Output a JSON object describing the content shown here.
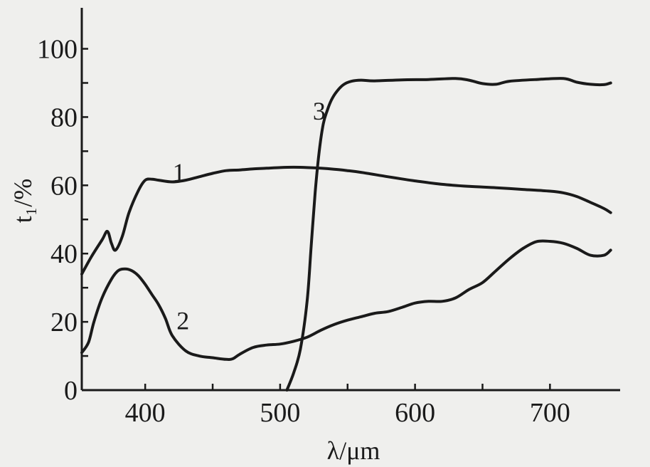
{
  "chart_data": {
    "type": "line",
    "title": "",
    "xlabel": "λ/μm",
    "ylabel": "t₁/%",
    "xlim": [
      353,
      752
    ],
    "ylim": [
      0,
      112
    ],
    "x_ticks": [
      400,
      450,
      500,
      550,
      600,
      650,
      700
    ],
    "x_tick_labels": [
      "400",
      "",
      "500",
      "",
      "600",
      "",
      "700"
    ],
    "y_ticks": [
      0,
      10,
      20,
      30,
      40,
      50,
      60,
      70,
      80,
      90,
      100
    ],
    "y_tick_labels": [
      "0",
      "",
      "20",
      "",
      "40",
      "",
      "60",
      "",
      "80",
      "",
      "100"
    ],
    "grid": false,
    "series": [
      {
        "name": "1",
        "x": [
          353,
          360,
          368,
          372,
          375,
          378,
          383,
          388,
          395,
          400,
          405,
          410,
          420,
          430,
          440,
          450,
          460,
          470,
          480,
          490,
          500,
          510,
          520,
          530,
          540,
          550,
          560,
          580,
          600,
          620,
          640,
          660,
          680,
          700,
          710,
          720,
          730,
          740,
          745
        ],
        "y": [
          34,
          39,
          44,
          46.5,
          43,
          41,
          45,
          52,
          58.5,
          61.5,
          61.8,
          61.5,
          61,
          61.5,
          62.5,
          63.5,
          64.3,
          64.5,
          64.8,
          65,
          65.2,
          65.3,
          65.2,
          65,
          64.7,
          64.3,
          63.8,
          62.5,
          61.3,
          60.3,
          59.7,
          59.3,
          58.8,
          58.3,
          57.8,
          56.7,
          55,
          53.2,
          52
        ]
      },
      {
        "name": "2",
        "x": [
          353,
          358,
          362,
          368,
          375,
          380,
          385,
          390,
          395,
          400,
          405,
          410,
          415,
          420,
          430,
          440,
          450,
          460,
          465,
          470,
          480,
          490,
          500,
          510,
          520,
          530,
          540,
          550,
          560,
          570,
          580,
          590,
          600,
          610,
          620,
          630,
          640,
          650,
          660,
          670,
          680,
          690,
          700,
          710,
          720,
          730,
          740,
          745
        ],
        "y": [
          11,
          14,
          20,
          27,
          32.5,
          35,
          35.5,
          35,
          33.5,
          31,
          28,
          25,
          21,
          16,
          11.5,
          10,
          9.5,
          9,
          9.2,
          10.5,
          12.5,
          13.2,
          13.5,
          14.3,
          15.5,
          17.5,
          19.2,
          20.5,
          21.5,
          22.5,
          23,
          24.2,
          25.5,
          26,
          26,
          27,
          29.5,
          31.5,
          35,
          38.5,
          41.5,
          43.5,
          43.6,
          43,
          41.5,
          39.5,
          39.5,
          41
        ]
      },
      {
        "name": "3",
        "x": [
          505,
          510,
          515,
          520,
          523,
          526,
          529,
          532,
          535,
          538,
          542,
          547,
          553,
          560,
          570,
          590,
          610,
          630,
          640,
          650,
          660,
          670,
          690,
          710,
          720,
          730,
          740,
          745
        ],
        "y": [
          0,
          5,
          12,
          26,
          42,
          58,
          70,
          78,
          82,
          85,
          87.5,
          89.5,
          90.5,
          90.8,
          90.6,
          90.9,
          91,
          91.3,
          90.8,
          89.8,
          89.6,
          90.5,
          91,
          91.3,
          90.2,
          89.6,
          89.5,
          90
        ]
      }
    ],
    "annotations": [
      {
        "text": "1",
        "x": 425,
        "y": 64
      },
      {
        "text": "2",
        "x": 428,
        "y": 20.5
      },
      {
        "text": "3",
        "x": 529,
        "y": 82
      }
    ]
  }
}
